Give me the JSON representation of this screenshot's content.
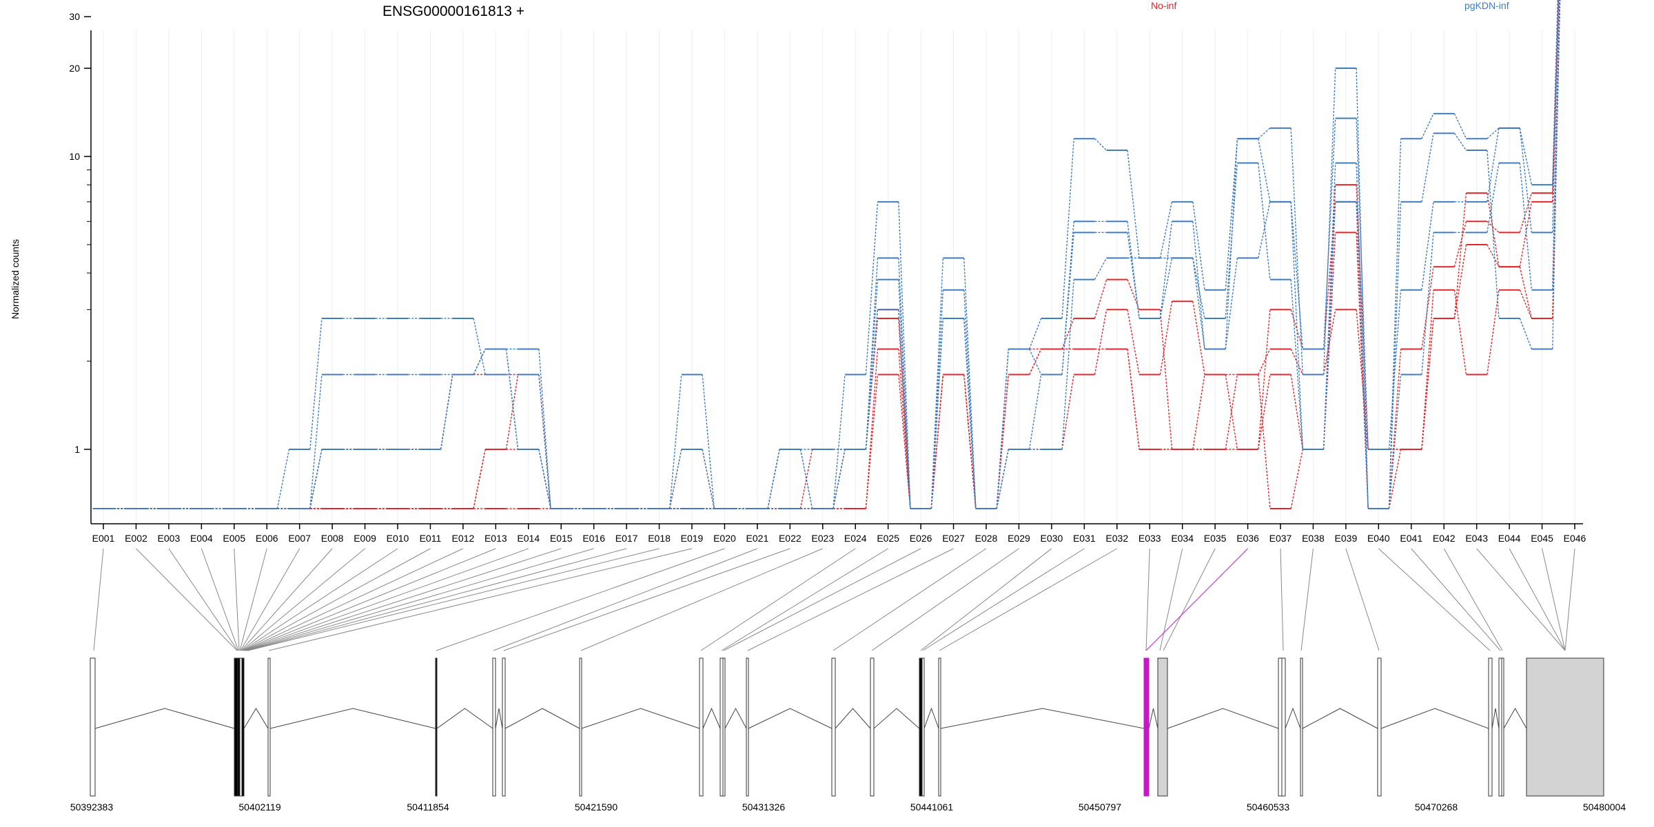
{
  "chart_data": {
    "type": "line",
    "title": "ENSG00000161813 +",
    "ylabel": "Normalized counts",
    "xlabel": "",
    "y_scale": "log",
    "ylim": [
      0.5,
      260
    ],
    "y_ticks": [
      1,
      10,
      20,
      30,
      50,
      100,
      200
    ],
    "grid": "vertical",
    "legend_placement": "top-right",
    "categories": [
      "E001",
      "E002",
      "E003",
      "E004",
      "E005",
      "E006",
      "E007",
      "E008",
      "E009",
      "E010",
      "E011",
      "E012",
      "E013",
      "E014",
      "E015",
      "E016",
      "E017",
      "E018",
      "E019",
      "E020",
      "E021",
      "E022",
      "E023",
      "E024",
      "E025",
      "E026",
      "E027",
      "E028",
      "E029",
      "E030",
      "E031",
      "E032",
      "E033",
      "E034",
      "E035",
      "E036",
      "E037",
      "E038",
      "E039",
      "E040",
      "E041",
      "E042",
      "E043",
      "E044",
      "E045",
      "E046"
    ],
    "groups": [
      {
        "name": "No-inf",
        "color": "#e3262b"
      },
      {
        "name": "pgKDN-inf",
        "color": "#3f7cbf"
      }
    ],
    "series": [
      {
        "group": "No-inf",
        "values": [
          0.5,
          0.5,
          0.5,
          0.5,
          0.5,
          0.5,
          0.5,
          1,
          1,
          1,
          1,
          1.8,
          1.8,
          1.8,
          0.5,
          0.5,
          0.5,
          0.5,
          1,
          0.5,
          0.5,
          0.5,
          1,
          1,
          3,
          0.5,
          1.8,
          0.5,
          1.8,
          2.2,
          2.2,
          2.2,
          1,
          1,
          1,
          1,
          1.8,
          1,
          5.5,
          0.5,
          1,
          2.8,
          5,
          4.2,
          7,
          165
        ]
      },
      {
        "group": "No-inf",
        "values": [
          0.5,
          0.5,
          0.5,
          0.5,
          0.5,
          0.5,
          0.5,
          0.5,
          0.5,
          0.5,
          0.5,
          0.5,
          1,
          1,
          0.5,
          0.5,
          0.5,
          0.5,
          0.5,
          0.5,
          0.5,
          0.5,
          0.5,
          0.5,
          1.8,
          0.5,
          1.8,
          0.5,
          1,
          1,
          1.8,
          3,
          1.8,
          3.2,
          1.8,
          1.8,
          2.2,
          1.8,
          3,
          1,
          1,
          3.5,
          1.8,
          3.5,
          2.8,
          140
        ]
      },
      {
        "group": "No-inf",
        "values": [
          0.5,
          0.5,
          0.5,
          0.5,
          0.5,
          0.5,
          0.5,
          0.5,
          0.5,
          0.5,
          0.5,
          0.5,
          0.5,
          0.5,
          0.5,
          0.5,
          0.5,
          0.5,
          0.5,
          0.5,
          0.5,
          0.5,
          0.5,
          0.5,
          2.2,
          0.5,
          1.8,
          0.5,
          2.2,
          2.2,
          2.8,
          3.8,
          3,
          1,
          1.8,
          1,
          3,
          2.2,
          7,
          0.5,
          2.2,
          4.2,
          6,
          5.5,
          7.5,
          150
        ]
      },
      {
        "group": "No-inf",
        "values": [
          0.5,
          0.5,
          0.5,
          0.5,
          0.5,
          0.5,
          0.5,
          0.5,
          0.5,
          0.5,
          0.5,
          0.5,
          1,
          1.8,
          0.5,
          0.5,
          0.5,
          0.5,
          0.5,
          0.5,
          0.5,
          0.5,
          0.5,
          1,
          2.8,
          0.5,
          1.8,
          0.5,
          1.8,
          2.2,
          2.2,
          2.2,
          1,
          1,
          1,
          1.8,
          0.5,
          1,
          8,
          1,
          1,
          2.8,
          7.5,
          4.2,
          2.8,
          165
        ]
      },
      {
        "group": "pgKDN-inf",
        "values": [
          0.5,
          0.5,
          0.5,
          0.5,
          0.5,
          0.5,
          0.5,
          1,
          1,
          1,
          1,
          1.8,
          2.2,
          1,
          0.5,
          0.5,
          0.5,
          0.5,
          1,
          0.5,
          0.5,
          1,
          0.5,
          1,
          3.8,
          0.5,
          2.8,
          0.5,
          1,
          1,
          3.8,
          4.5,
          4.5,
          4.5,
          2.8,
          9.5,
          3.8,
          1,
          9.5,
          0.5,
          1.8,
          5.5,
          5.5,
          9.5,
          3.5,
          200
        ]
      },
      {
        "group": "pgKDN-inf",
        "values": [
          0.5,
          0.5,
          0.5,
          0.5,
          0.5,
          0.5,
          1,
          2.8,
          2.8,
          2.8,
          2.8,
          2.8,
          1.8,
          1.8,
          0.5,
          0.5,
          0.5,
          0.5,
          1.8,
          0.5,
          0.5,
          0.5,
          0.5,
          1.8,
          7,
          0.5,
          4.5,
          0.5,
          2.2,
          2.8,
          11.5,
          10.5,
          4.5,
          7,
          3.5,
          11.5,
          12.5,
          1.8,
          20,
          0.5,
          11.5,
          14,
          11.5,
          12.5,
          8,
          220
        ]
      },
      {
        "group": "pgKDN-inf",
        "values": [
          0.5,
          0.5,
          0.5,
          0.5,
          0.5,
          0.5,
          0.5,
          1.8,
          1.8,
          1.8,
          1.8,
          1.8,
          2.2,
          2.2,
          0.5,
          0.5,
          0.5,
          0.5,
          0.5,
          0.5,
          0.5,
          1,
          0.5,
          1,
          4.5,
          0.5,
          3.5,
          0.5,
          2.2,
          1.8,
          6,
          6,
          2.8,
          6,
          2.2,
          4.5,
          7,
          2.2,
          13.5,
          1,
          3.5,
          7,
          7,
          12.5,
          5.5,
          220
        ]
      },
      {
        "group": "pgKDN-inf",
        "values": [
          0.5,
          0.5,
          0.5,
          0.5,
          0.5,
          0.5,
          0.5,
          1,
          1,
          1,
          1,
          1.8,
          2.2,
          1,
          0.5,
          0.5,
          0.5,
          0.5,
          0.5,
          0.5,
          0.5,
          1,
          1,
          1,
          3,
          0.5,
          2.8,
          0.5,
          1,
          1.8,
          5.5,
          5.5,
          2.8,
          4.5,
          2.2,
          11.5,
          7,
          1,
          7,
          0.5,
          7,
          12,
          10.5,
          2.8,
          2.2,
          200
        ]
      }
    ],
    "gene_model": {
      "coordinate_labels": [
        "50392383",
        "50402119",
        "50411854",
        "50421590",
        "50431326",
        "50441061",
        "50450797",
        "50460533",
        "50470268",
        "50480004"
      ],
      "highlighted_exon": "E036",
      "colors": {
        "exon_fill": "#ffffff",
        "utr_fill": "#d3d3d3",
        "highlight": "#c51bc5",
        "line": "#444444"
      }
    }
  }
}
